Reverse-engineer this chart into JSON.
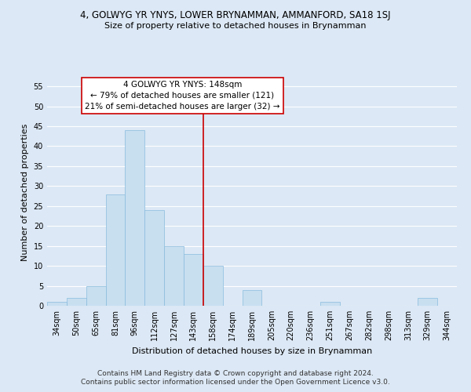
{
  "title": "4, GOLWYG YR YNYS, LOWER BRYNAMMAN, AMMANFORD, SA18 1SJ",
  "subtitle": "Size of property relative to detached houses in Brynamman",
  "xlabel": "Distribution of detached houses by size in Brynamman",
  "ylabel": "Number of detached properties",
  "bar_color": "#c8dff0",
  "bar_edge_color": "#88bbdd",
  "bin_labels": [
    "34sqm",
    "50sqm",
    "65sqm",
    "81sqm",
    "96sqm",
    "112sqm",
    "127sqm",
    "143sqm",
    "158sqm",
    "174sqm",
    "189sqm",
    "205sqm",
    "220sqm",
    "236sqm",
    "251sqm",
    "267sqm",
    "282sqm",
    "298sqm",
    "313sqm",
    "329sqm",
    "344sqm"
  ],
  "bar_heights": [
    1,
    2,
    5,
    28,
    44,
    24,
    15,
    13,
    10,
    0,
    4,
    0,
    0,
    0,
    1,
    0,
    0,
    0,
    0,
    2,
    0
  ],
  "ylim": [
    0,
    57
  ],
  "yticks": [
    0,
    5,
    10,
    15,
    20,
    25,
    30,
    35,
    40,
    45,
    50,
    55
  ],
  "vline_color": "#cc0000",
  "annotation_title": "4 GOLWYG YR YNYS: 148sqm",
  "annotation_line1": "← 79% of detached houses are smaller (121)",
  "annotation_line2": "21% of semi-detached houses are larger (32) →",
  "annotation_box_color": "#ffffff",
  "annotation_box_edge_color": "#cc0000",
  "footer1": "Contains HM Land Registry data © Crown copyright and database right 2024.",
  "footer2": "Contains public sector information licensed under the Open Government Licence v3.0.",
  "background_color": "#dce8f5",
  "grid_color": "#ffffff",
  "title_fontsize": 8.5,
  "subtitle_fontsize": 8,
  "axis_label_fontsize": 8,
  "tick_fontsize": 7,
  "annotation_fontsize": 7.5,
  "footer_fontsize": 6.5
}
